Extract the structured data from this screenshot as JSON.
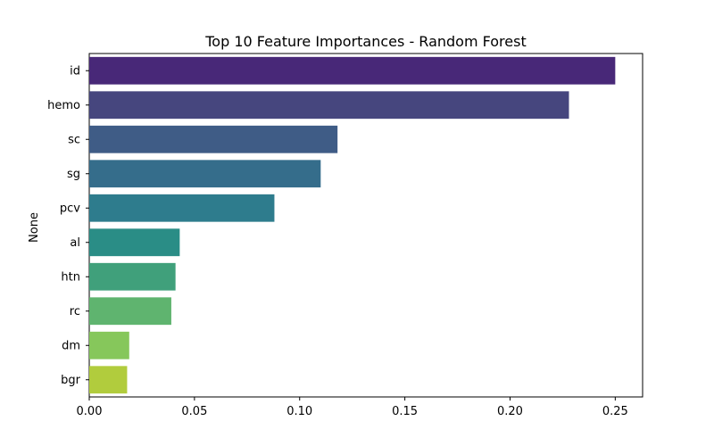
{
  "chart_data": {
    "type": "bar",
    "orientation": "horizontal",
    "title": "Top 10 Feature Importances - Random Forest",
    "xlabel": "",
    "ylabel": "None",
    "categories": [
      "id",
      "hemo",
      "sc",
      "sg",
      "pcv",
      "al",
      "htn",
      "rc",
      "dm",
      "bgr"
    ],
    "values": [
      0.25,
      0.228,
      0.118,
      0.11,
      0.088,
      0.043,
      0.041,
      0.039,
      0.019,
      0.018
    ],
    "colors": [
      "#482878",
      "#46467e",
      "#3f5c86",
      "#356d8b",
      "#2e7c8d",
      "#2a8d86",
      "#40a07b",
      "#5fb46f",
      "#86c75b",
      "#b1cc3d"
    ],
    "xlim": [
      0,
      0.263
    ],
    "xticks": [
      0.0,
      0.05,
      0.1,
      0.15,
      0.2,
      0.25
    ],
    "xtick_labels": [
      "0.00",
      "0.05",
      "0.10",
      "0.15",
      "0.20",
      "0.25"
    ],
    "grid": false,
    "legend": "none"
  }
}
